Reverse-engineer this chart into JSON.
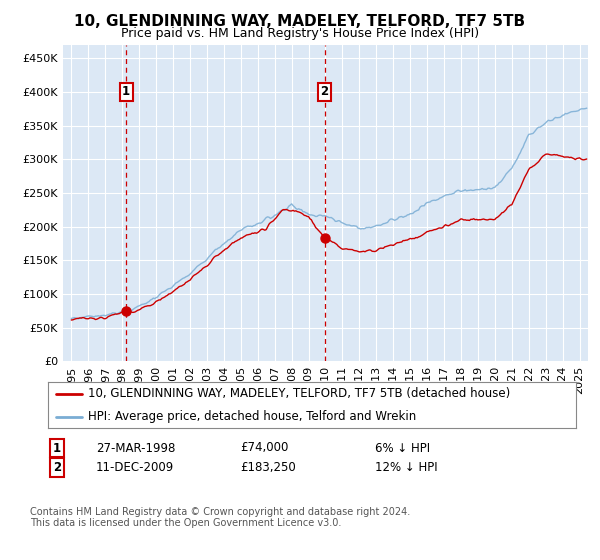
{
  "title": "10, GLENDINNING WAY, MADELEY, TELFORD, TF7 5TB",
  "subtitle": "Price paid vs. HM Land Registry's House Price Index (HPI)",
  "ylim": [
    0,
    470000
  ],
  "yticks": [
    0,
    50000,
    100000,
    150000,
    200000,
    250000,
    300000,
    350000,
    400000,
    450000
  ],
  "ytick_labels": [
    "£0",
    "£50K",
    "£100K",
    "£150K",
    "£200K",
    "£250K",
    "£300K",
    "£350K",
    "£400K",
    "£450K"
  ],
  "fig_bg_color": "#ffffff",
  "plot_bg_color": "#dce8f5",
  "grid_color": "#ffffff",
  "line_color_red": "#cc0000",
  "line_color_blue": "#7aadd4",
  "purchase1_year": 1998.23,
  "purchase1_price": 74000,
  "purchase1_label": "1",
  "purchase1_date": "27-MAR-1998",
  "purchase1_pct": "6%",
  "purchase2_year": 2009.95,
  "purchase2_price": 183250,
  "purchase2_label": "2",
  "purchase2_date": "11-DEC-2009",
  "purchase2_pct": "12%",
  "legend_line1": "10, GLENDINNING WAY, MADELEY, TELFORD, TF7 5TB (detached house)",
  "legend_line2": "HPI: Average price, detached house, Telford and Wrekin",
  "footer": "Contains HM Land Registry data © Crown copyright and database right 2024.\nThis data is licensed under the Open Government Licence v3.0.",
  "title_fontsize": 11,
  "subtitle_fontsize": 9,
  "tick_fontsize": 8,
  "legend_fontsize": 8.5,
  "table_fontsize": 8.5,
  "footer_fontsize": 7
}
